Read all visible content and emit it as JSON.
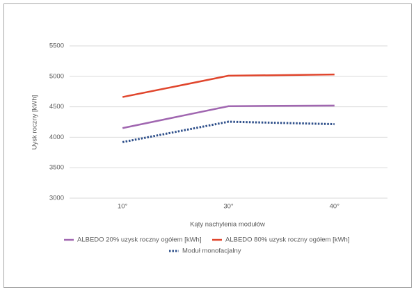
{
  "chart_data": {
    "type": "line",
    "y_label": "Uysk roczny [kWh]",
    "x_label": "Kąty nachylenia modułów",
    "categories": [
      "10°",
      "30°",
      "40°"
    ],
    "series": [
      {
        "name": "ALBEDO 20% uzysk roczny ogółem [kWh]",
        "color": "#a066b0",
        "style": "solid",
        "values": [
          4150,
          4510,
          4520
        ]
      },
      {
        "name": "ALBEDO 80% uzysk roczny ogółem [kWh]",
        "color": "#e0452c",
        "style": "solid",
        "values": [
          4660,
          5010,
          5030
        ]
      },
      {
        "name": "Moduł monofacjalny",
        "color": "#2e4f8a",
        "style": "dotted",
        "values": [
          3920,
          4255,
          4215
        ]
      }
    ],
    "ylim": [
      3000,
      5500
    ],
    "yticks": [
      3000,
      3500,
      4000,
      4500,
      5000,
      5500
    ],
    "grid": true
  }
}
